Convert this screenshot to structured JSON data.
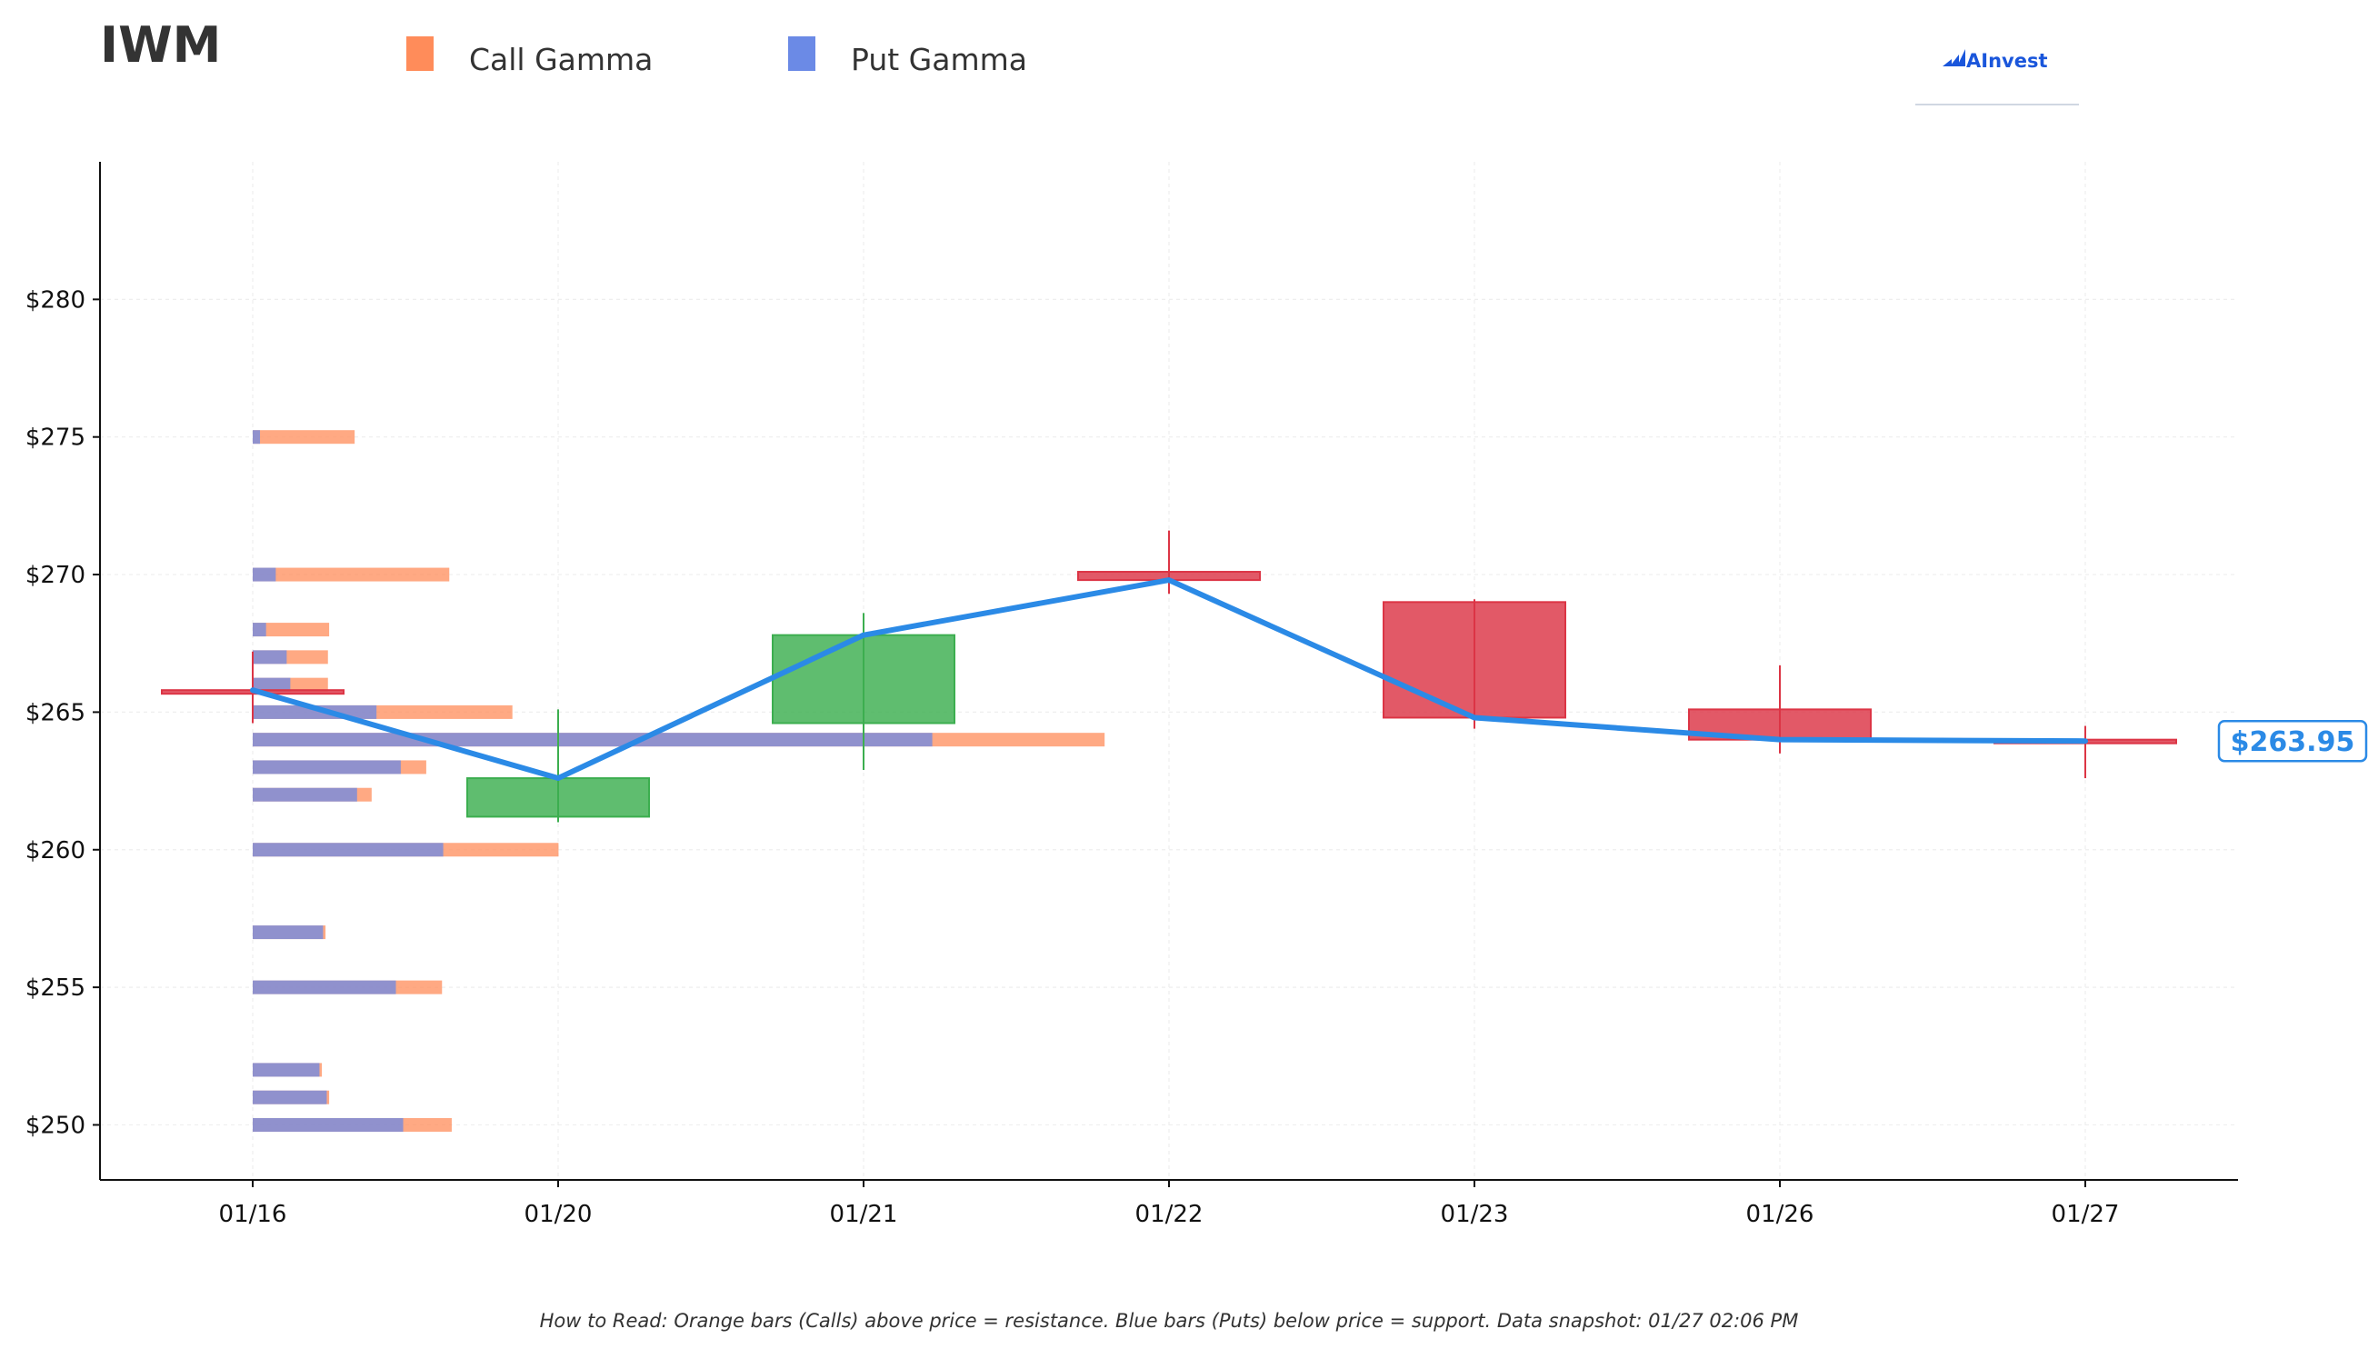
{
  "chart_data": {
    "type": "candlestick",
    "title": "IWM",
    "legend": [
      {
        "name": "Call Gamma",
        "color": "#ff8c5a"
      },
      {
        "name": "Put Gamma",
        "color": "#6b8ae6"
      }
    ],
    "legend_placement": "top-center",
    "ylim": [
      248,
      285
    ],
    "y_ticks": [
      250,
      255,
      260,
      265,
      270,
      275,
      280
    ],
    "y_tick_labels": [
      "$250",
      "$255",
      "$260",
      "$265",
      "$270",
      "$275",
      "$280"
    ],
    "x_tick_labels": [
      "01/16",
      "01/20",
      "01/21",
      "01/22",
      "01/23",
      "01/26",
      "01/27"
    ],
    "grid": true,
    "candles": [
      {
        "date": "01/16",
        "open": 265.8,
        "high": 267.2,
        "low": 264.6,
        "close": 265.8,
        "direction": "down"
      },
      {
        "date": "01/20",
        "open": 261.2,
        "high": 265.1,
        "low": 261.0,
        "close": 262.6,
        "direction": "up"
      },
      {
        "date": "01/21",
        "open": 264.6,
        "high": 268.6,
        "low": 262.9,
        "close": 267.8,
        "direction": "up"
      },
      {
        "date": "01/22",
        "open": 270.1,
        "high": 271.6,
        "low": 269.3,
        "close": 269.8,
        "direction": "down"
      },
      {
        "date": "01/23",
        "open": 269.0,
        "high": 269.1,
        "low": 264.4,
        "close": 264.8,
        "direction": "down"
      },
      {
        "date": "01/26",
        "open": 265.1,
        "high": 266.7,
        "low": 263.5,
        "close": 264.0,
        "direction": "down"
      },
      {
        "date": "01/27",
        "open": 264.0,
        "high": 264.5,
        "low": 262.6,
        "close": 263.95,
        "direction": "down"
      }
    ],
    "close_line": [
      265.8,
      262.6,
      267.8,
      269.8,
      264.8,
      264.0,
      263.95
    ],
    "gamma_bars": [
      {
        "strike": 275,
        "put": 0.03,
        "call": 0.42
      },
      {
        "strike": 270,
        "put": 0.095,
        "call": 0.81
      },
      {
        "strike": 268,
        "put": 0.055,
        "call": 0.315
      },
      {
        "strike": 267,
        "put": 0.14,
        "call": 0.31
      },
      {
        "strike": 266,
        "put": 0.155,
        "call": 0.31
      },
      {
        "strike": 265,
        "put": 0.51,
        "call": 1.07
      },
      {
        "strike": 264,
        "put": 2.8,
        "call": 3.51
      },
      {
        "strike": 263,
        "put": 0.61,
        "call": 0.715
      },
      {
        "strike": 262,
        "put": 0.43,
        "call": 0.49
      },
      {
        "strike": 260,
        "put": 0.785,
        "call": 1.26
      },
      {
        "strike": 257,
        "put": 0.29,
        "call": 0.3
      },
      {
        "strike": 255,
        "put": 0.59,
        "call": 0.78
      },
      {
        "strike": 252,
        "put": 0.275,
        "call": 0.285
      },
      {
        "strike": 251,
        "put": 0.305,
        "call": 0.315
      },
      {
        "strike": 250,
        "put": 0.62,
        "call": 0.82
      }
    ],
    "current_price_label": "$263.95",
    "current_price": 263.95
  },
  "branding": {
    "logo_text": "AInvest"
  },
  "footnote": "How to Read: Orange bars (Calls) above price = resistance. Blue bars (Puts) below price = support. Data snapshot: 01/27 02:06 PM",
  "colors": {
    "up": "#3cae4f",
    "down": "#dc3545",
    "close_line": "#2b8ae6",
    "call": "#ff8c5a",
    "put": "#6b8ae6"
  }
}
